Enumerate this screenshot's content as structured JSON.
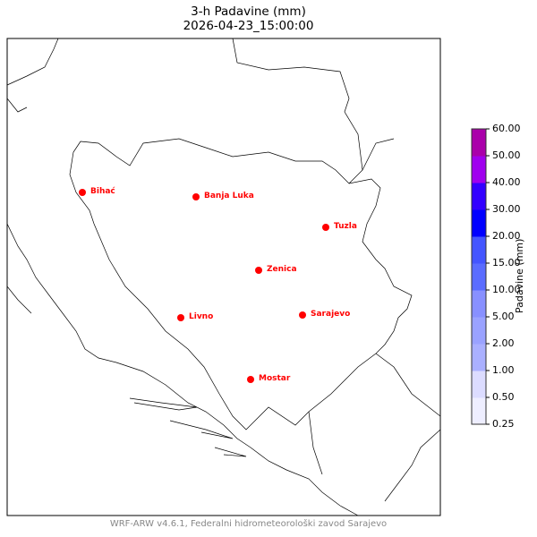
{
  "title": {
    "line1": "3-h Padavine (mm)",
    "line2": "2026-04-23_15:00:00"
  },
  "footer": "WRF-ARW v4.6.1, Federalni hidrometeorološki zavod Sarajevo",
  "colorbar": {
    "label": "Padavine (mm)",
    "ticks": [
      "0.25",
      "0.50",
      "1.00",
      "2.00",
      "5.00",
      "10.00",
      "15.00",
      "20.00",
      "30.00",
      "40.00",
      "50.00",
      "60.00"
    ],
    "colors": [
      "#eeeeff",
      "#dcdcff",
      "#aab0ff",
      "#9aa2ff",
      "#8890ff",
      "#5a6cff",
      "#4455ff",
      "#0000ff",
      "#3300ff",
      "#a000ee",
      "#aa00aa"
    ]
  },
  "cities": [
    {
      "name": "Bihać",
      "id": "bihac"
    },
    {
      "name": "Banja Luka",
      "id": "banja-luka"
    },
    {
      "name": "Tuzla",
      "id": "tuzla"
    },
    {
      "name": "Zenica",
      "id": "zenica"
    },
    {
      "name": "Livno",
      "id": "livno"
    },
    {
      "name": "Sarajevo",
      "id": "sarajevo"
    },
    {
      "name": "Mostar",
      "id": "mostar"
    }
  ],
  "city_color": "#ff0000"
}
